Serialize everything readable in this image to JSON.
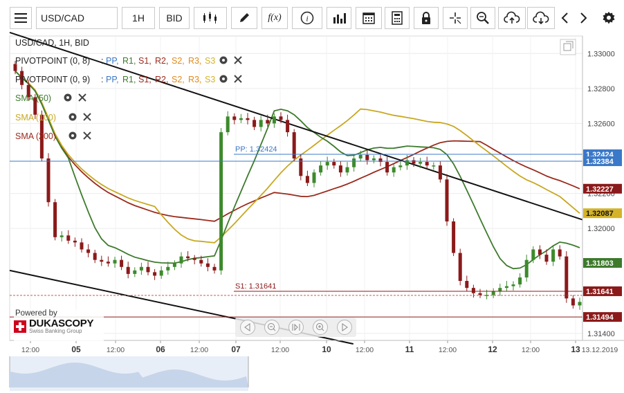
{
  "toolbar": {
    "symbol": "USD/CAD",
    "period": "1H",
    "side": "BID",
    "icons": [
      "menu-icon",
      "candles-icon",
      "pencil-icon",
      "function-icon",
      "info-icon",
      "bar-chart-icon",
      "calendar-icon",
      "calculator-icon",
      "lock-icon",
      "crosshair-icon",
      "zoom-icon",
      "upload-icon",
      "download-icon",
      "prev-icon",
      "next-icon",
      "gear-icon"
    ],
    "fx_label": "f(x)"
  },
  "legend": {
    "title": "USD/CAD, 1H, BID",
    "pivot1_name": "PIVOTPOINT (0, 8)",
    "pivot2_name": "PIVOTPOINT (0, 9)",
    "sep": ":",
    "pp": "PP,",
    "r1": "R1,",
    "s1": "S1,",
    "r2": "R2,",
    "s2": "S2,",
    "r3": "R3,",
    "s3": "S3",
    "sma50": "SMA (50)",
    "sma100": "SMA (100)",
    "sma200": "SMA (200)"
  },
  "branding": {
    "powered_by": "Powered by",
    "name": "DUKASCOPY",
    "sub": "Swiss Banking Group"
  },
  "chart_data": {
    "type": "candlestick",
    "symbol": "USD/CAD",
    "timeframe": "1H",
    "ylim": [
      1.3136,
      1.331
    ],
    "y_ticks": [
      "1.33000",
      "1.32800",
      "1.32600",
      "1.32200",
      "1.32000",
      "1.31400"
    ],
    "x_ticks": [
      "12:00",
      "05",
      "12:00",
      "06",
      "12:00",
      "07",
      "12:00",
      "10",
      "12:00",
      "11",
      "12:00",
      "12",
      "12:00",
      "13",
      "13.12.2019"
    ],
    "price_tags": [
      {
        "label": "1.32424",
        "value": 1.32424,
        "color": "#3a78c8"
      },
      {
        "label": "1.32384",
        "value": 1.32384,
        "color": "#3a78c8"
      },
      {
        "label": "1.32227",
        "value": 1.32227,
        "color": "#8b1a1a"
      },
      {
        "label": "1.32087",
        "value": 1.32087,
        "color": "#d4b32a"
      },
      {
        "label": "1.31803",
        "value": 1.31803,
        "color": "#3d7a2c"
      },
      {
        "label": "1.31641",
        "value": 1.31641,
        "color": "#8b1a1a"
      },
      {
        "label": "1.31494",
        "value": 1.31494,
        "color": "#8b1a1a"
      }
    ],
    "levels": {
      "pp_label": "PP: 1.32424",
      "pp": 1.32424,
      "s1_label": "S1: 1.31641",
      "s1": 1.31641,
      "s2": 1.31494,
      "pp2": 1.32384
    },
    "colors": {
      "sma50": "#3d7a2c",
      "sma100": "#c8a820",
      "sma200": "#9b2a1c",
      "pivot": "#3a78c8",
      "support": "#8b1a1a",
      "up": "#3d8a2c",
      "down": "#8b1a1a"
    },
    "trendlines": [
      {
        "from": [
          0,
          1.3312
        ],
        "to": [
          1,
          1.3205
        ]
      },
      {
        "from": [
          0,
          1.3176
        ],
        "to": [
          0.6,
          1.3134
        ]
      }
    ],
    "close_points": [
      1.329,
      1.3282,
      1.3275,
      1.3265,
      1.324,
      1.3215,
      1.3195,
      1.3196,
      1.3193,
      1.3192,
      1.3188,
      1.3186,
      1.3182,
      1.3181,
      1.318,
      1.3182,
      1.3178,
      1.3174,
      1.3176,
      1.3178,
      1.3175,
      1.3173,
      1.3176,
      1.3178,
      1.318,
      1.3184,
      1.3183,
      1.3182,
      1.318,
      1.3178,
      1.3176,
      1.3255,
      1.3264,
      1.3262,
      1.3263,
      1.3262,
      1.3258,
      1.3262,
      1.326,
      1.3264,
      1.3262,
      1.3255,
      1.324,
      1.323,
      1.3226,
      1.3232,
      1.3236,
      1.3238,
      1.3236,
      1.3232,
      1.3235,
      1.324,
      1.3242,
      1.3239,
      1.324,
      1.3238,
      1.3232,
      1.3235,
      1.3236,
      1.3239,
      1.3237,
      1.3238,
      1.3236,
      1.3236,
      1.3228,
      1.3204,
      1.3186,
      1.317,
      1.3166,
      1.3163,
      1.3162,
      1.3162,
      1.3164,
      1.3166,
      1.3167,
      1.3168,
      1.3172,
      1.3182,
      1.3188,
      1.3185,
      1.3181,
      1.3188,
      1.3184,
      1.316,
      1.3156,
      1.3158
    ]
  }
}
